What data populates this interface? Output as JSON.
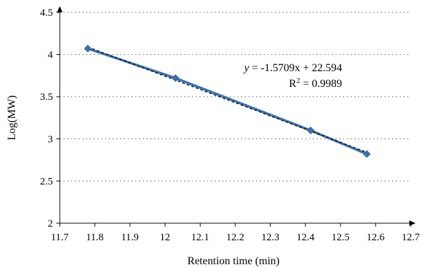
{
  "chart_data": {
    "type": "scatter",
    "title": "",
    "xlabel": "Retention time (min)",
    "ylabel": "Log(MW)",
    "xlim": [
      11.7,
      12.7
    ],
    "ylim": [
      2,
      4.5
    ],
    "x_ticks": [
      "11.7",
      "11.8",
      "11.9",
      "12",
      "12.1",
      "12.2",
      "12.3",
      "12.4",
      "12.5",
      "12.6",
      "12.7"
    ],
    "y_ticks": [
      "2",
      "2.5",
      "3",
      "3.5",
      "4",
      "4.5"
    ],
    "grid": "horizontal-dotted",
    "series": [
      {
        "x": [
          11.78,
          12.03,
          12.415,
          12.575
        ],
        "y": [
          4.07,
          3.72,
          3.1,
          2.82
        ],
        "color": "#3b73b0",
        "marker": "diamond",
        "line": "solid"
      }
    ],
    "trendline": {
      "type": "linear",
      "slope": -1.5709,
      "intercept": 22.594,
      "color": "#000000",
      "style": "dashed"
    },
    "annotations": {
      "equation_var": "y",
      "equation_rest": " = -1.5709x + 22.594",
      "r2_prefix": "R",
      "r2_sup": "2",
      "r2_rest": " = 0.9989"
    }
  }
}
